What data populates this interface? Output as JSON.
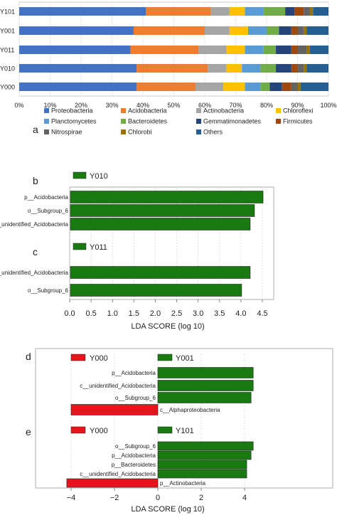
{
  "panel_labels": {
    "a": "a",
    "b": "b",
    "c": "c",
    "d": "d",
    "e": "e"
  },
  "colors": {
    "proteobacteria": "#4472c4",
    "acidobacteria": "#ed7d31",
    "actinobacteria": "#a5a5a5",
    "chloroflexi": "#ffc000",
    "planctomycetes": "#5b9bd5",
    "bacteroidetes": "#70ad47",
    "gemmatimonadetes": "#264478",
    "firmicutes": "#9e480e",
    "nitrospirae": "#636363",
    "chlorobi": "#997300",
    "others": "#255e91",
    "lda_green": "#1a7a12",
    "lda_red": "#e8141b"
  },
  "chart_data": [
    {
      "type": "bar",
      "orientation": "horizontal",
      "stacked": "percent",
      "categories": [
        "Y101",
        "Y001",
        "Y011",
        "Y010",
        "Y000"
      ],
      "x_ticks": [
        "0%",
        "10%",
        "20%",
        "30%",
        "40%",
        "50%",
        "60%",
        "70%",
        "80%",
        "90%",
        "100%"
      ],
      "xlim": [
        0,
        100
      ],
      "series": [
        {
          "name": "Proteobacteria",
          "values": [
            41,
            37,
            36,
            38,
            38
          ]
        },
        {
          "name": "Acidobacteria",
          "values": [
            21,
            23,
            22,
            23,
            19
          ]
        },
        {
          "name": "Actinobacteria",
          "values": [
            6,
            8,
            9,
            6,
            9
          ]
        },
        {
          "name": "Chloroflexi",
          "values": [
            5,
            6,
            6,
            5,
            7
          ]
        },
        {
          "name": "Planctomycetes",
          "values": [
            6,
            6,
            6,
            6,
            5
          ]
        },
        {
          "name": "Bacteroidetes",
          "values": [
            7,
            4,
            4,
            5,
            3
          ]
        },
        {
          "name": "Gemmatimonadetes",
          "values": [
            3,
            4,
            5,
            5,
            4
          ]
        },
        {
          "name": "Firmicutes",
          "values": [
            3,
            2,
            2,
            2,
            3
          ]
        },
        {
          "name": "Nitrospirae",
          "values": [
            2,
            2,
            3,
            2,
            2
          ]
        },
        {
          "name": "Chlorobi",
          "values": [
            1,
            1,
            1,
            1,
            1
          ]
        },
        {
          "name": "Others",
          "values": [
            5,
            7,
            6,
            7,
            9
          ]
        }
      ],
      "legend_position": "bottom"
    },
    {
      "type": "bar",
      "orientation": "horizontal",
      "panels": [
        {
          "label": "b",
          "group": "Y010",
          "categories": [
            "p__Acidobacteria",
            "o__Subgroup_6",
            "c__unidentified_Acidobacteria"
          ],
          "values": [
            4.5,
            4.3,
            4.2
          ]
        },
        {
          "label": "c",
          "group": "Y011",
          "categories": [
            "c__unidentified_Acidobacteria",
            "o__Subgroup_6"
          ],
          "values": [
            4.2,
            4.0
          ]
        }
      ],
      "x_ticks": [
        "0.0",
        "0.5",
        "1.0",
        "1.5",
        "2.0",
        "2.5",
        "3.0",
        "3.5",
        "4.0",
        "4.5"
      ],
      "xlim": [
        0,
        4.5
      ],
      "xlabel": "LDA SCORE (log 10)"
    },
    {
      "type": "bar",
      "orientation": "horizontal",
      "diverging": true,
      "panels": [
        {
          "label": "d",
          "groups": [
            "Y000",
            "Y001"
          ],
          "categories": [
            "p__Acidobacteria",
            "c__unidentified_Acidobacteria",
            "o__Subgroup_6",
            "c__Alphaproteobacteria"
          ],
          "values": [
            4.4,
            4.4,
            4.3,
            -4.0
          ]
        },
        {
          "label": "e",
          "groups": [
            "Y000",
            "Y101"
          ],
          "categories": [
            "o__Subgroup_6",
            "p__Acidobacteria",
            "p__Bacteroidetes",
            "c__unidentified_Acidobacteria",
            "p__Actinobacteria"
          ],
          "values": [
            4.4,
            4.3,
            4.1,
            4.1,
            -4.2
          ]
        }
      ],
      "x_ticks": [
        "−4",
        "−2",
        "0",
        "2",
        "4"
      ],
      "xlim": [
        -4.2,
        4.6
      ],
      "xlabel": "LDA SCORE (log 10)"
    }
  ]
}
